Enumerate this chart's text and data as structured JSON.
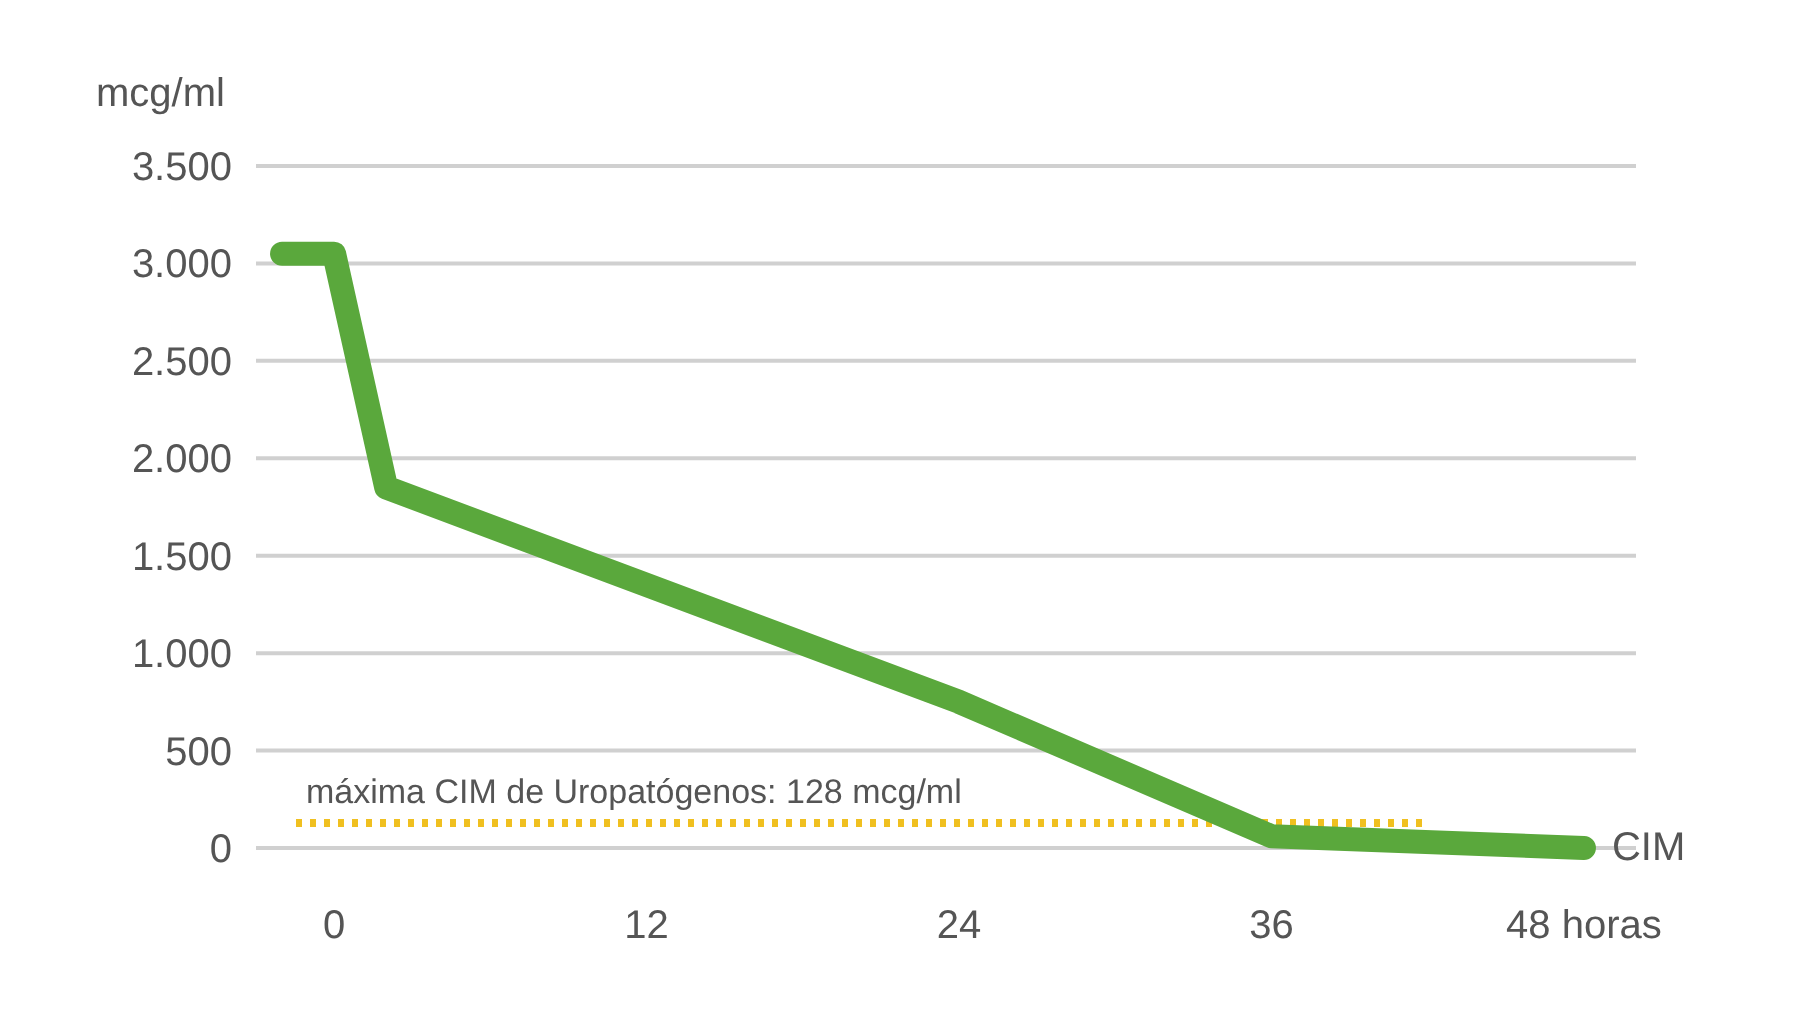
{
  "chart_data": {
    "type": "line",
    "ylabel": "mcg/ml",
    "x": [
      -2,
      0,
      2,
      24,
      36,
      48
    ],
    "series": [
      {
        "color": "#5aa83c",
        "values": [
          3050,
          3050,
          1850,
          750,
          60,
          0
        ]
      }
    ],
    "xlim": [
      -3,
      50
    ],
    "xticks": [
      0,
      12,
      24,
      36,
      {
        "value": 48,
        "label": "48 horas"
      }
    ],
    "ylim": [
      0,
      3500
    ],
    "yticks": [
      {
        "value": 0,
        "label": "0"
      },
      {
        "value": 500,
        "label": "500"
      },
      {
        "value": 1000,
        "label": "1.000"
      },
      {
        "value": 1500,
        "label": "1.500"
      },
      {
        "value": 2000,
        "label": "2.000"
      },
      {
        "value": 2500,
        "label": "2.500"
      },
      {
        "value": 3000,
        "label": "3.000"
      },
      {
        "value": 3500,
        "label": "3.500"
      }
    ],
    "grid": "y",
    "line_style": "solid",
    "ref_lines": [
      {
        "axis": "y",
        "value": 128,
        "label": "máxima CIM de Uropatógenos: 128 mcg/ml",
        "color": "#f0c020",
        "line_style": "dotted"
      }
    ],
    "annotations": [
      {
        "text": "CIM",
        "x": 48,
        "y": 0
      }
    ]
  }
}
